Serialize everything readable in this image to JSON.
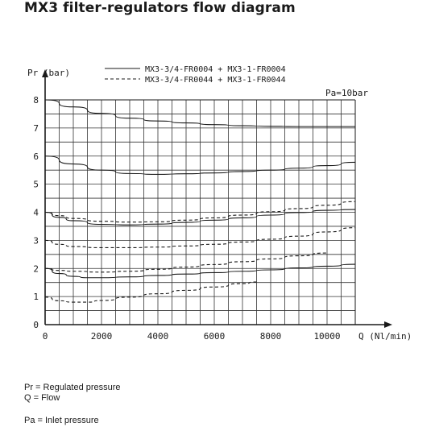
{
  "page": {
    "title": "MX3 filter-regulators flow diagram",
    "notes": {
      "pr": "Pr = Regulated pressure",
      "q": "Q = Flow",
      "pa": "Pa = Inlet pressure"
    }
  },
  "chart_data": {
    "type": "line",
    "title": "MX3 filter-regulators flow diagram",
    "ylabel": "Pr (bar)",
    "xlabel": "Q (Nl/min)",
    "xlim": [
      0,
      11000
    ],
    "ylim": [
      0,
      8
    ],
    "x_ticks": [
      0,
      2000,
      4000,
      6000,
      8000,
      10000
    ],
    "x_tick_labels": [
      "0",
      "2000",
      "4000",
      "6000",
      "8000",
      "10000"
    ],
    "y_ticks": [
      0,
      1,
      2,
      3,
      4,
      5,
      6,
      7,
      8
    ],
    "y_tick_labels": [
      "0",
      "1",
      "2",
      "3",
      "4",
      "5",
      "6",
      "7",
      "8"
    ],
    "grid": true,
    "annotation": "Pa=10bar",
    "legend": [
      {
        "label": "MX3-3/4-FR0004 + MX3-1-FR0004",
        "style": "solid"
      },
      {
        "label": "MX3-3/4-FR0044 + MX3-1-FR0044",
        "style": "dashed"
      }
    ],
    "series": [
      {
        "style": "solid",
        "set_pressure": 8,
        "x": [
          0,
          1000,
          2000,
          3000,
          4000,
          5000,
          6000,
          7000,
          8000,
          9000,
          10000,
          11000
        ],
        "y": [
          8.0,
          7.75,
          7.52,
          7.35,
          7.25,
          7.18,
          7.12,
          7.08,
          7.06,
          7.05,
          7.05,
          7.05
        ]
      },
      {
        "style": "solid",
        "set_pressure": 6,
        "x": [
          0,
          1000,
          2000,
          3000,
          4000,
          5000,
          6000,
          7000,
          8000,
          9000,
          10000,
          11000
        ],
        "y": [
          6.0,
          5.72,
          5.5,
          5.38,
          5.35,
          5.37,
          5.4,
          5.45,
          5.5,
          5.57,
          5.66,
          5.78
        ]
      },
      {
        "style": "solid",
        "set_pressure": 4,
        "x": [
          0,
          500,
          1000,
          2000,
          3000,
          4000,
          5000,
          6000,
          7000,
          8000,
          9000,
          10000,
          11000
        ],
        "y": [
          4.0,
          3.82,
          3.7,
          3.57,
          3.55,
          3.58,
          3.64,
          3.72,
          3.8,
          3.9,
          3.99,
          4.07,
          4.1
        ]
      },
      {
        "style": "solid",
        "set_pressure": 2,
        "x": [
          0,
          500,
          1000,
          1500,
          2000,
          3000,
          4000,
          5000,
          6000,
          7000,
          8000,
          9000,
          10000,
          11000
        ],
        "y": [
          2.0,
          1.82,
          1.72,
          1.67,
          1.67,
          1.7,
          1.75,
          1.8,
          1.85,
          1.9,
          1.95,
          2.02,
          2.08,
          2.15
        ]
      },
      {
        "style": "dashed",
        "set_pressure": 4,
        "x": [
          0,
          500,
          1000,
          2000,
          3000,
          4000,
          5000,
          6000,
          7000,
          8000,
          9000,
          10000,
          11000
        ],
        "y": [
          4.0,
          3.88,
          3.78,
          3.68,
          3.65,
          3.66,
          3.72,
          3.8,
          3.9,
          4.02,
          4.13,
          4.25,
          4.38
        ]
      },
      {
        "style": "dashed",
        "set_pressure": 3,
        "x": [
          0,
          500,
          1000,
          2000,
          3000,
          4000,
          5000,
          6000,
          7000,
          8000,
          9000,
          10000,
          11000
        ],
        "y": [
          3.0,
          2.86,
          2.78,
          2.74,
          2.74,
          2.76,
          2.8,
          2.86,
          2.94,
          3.04,
          3.15,
          3.3,
          3.45
        ]
      },
      {
        "style": "dashed",
        "set_pressure": 2,
        "x": [
          0,
          500,
          1000,
          2000,
          3000,
          4000,
          5000,
          6000,
          7000,
          8000,
          9000,
          10000
        ],
        "y": [
          2.0,
          1.93,
          1.9,
          1.87,
          1.9,
          1.97,
          2.05,
          2.14,
          2.24,
          2.34,
          2.45,
          2.55
        ]
      },
      {
        "style": "dashed",
        "set_pressure": 1,
        "x": [
          0,
          500,
          1000,
          1500,
          2000,
          3000,
          4000,
          5000,
          6000,
          7000,
          7500
        ],
        "y": [
          0.98,
          0.85,
          0.8,
          0.8,
          0.86,
          0.98,
          1.1,
          1.22,
          1.34,
          1.46,
          1.52
        ]
      }
    ]
  }
}
